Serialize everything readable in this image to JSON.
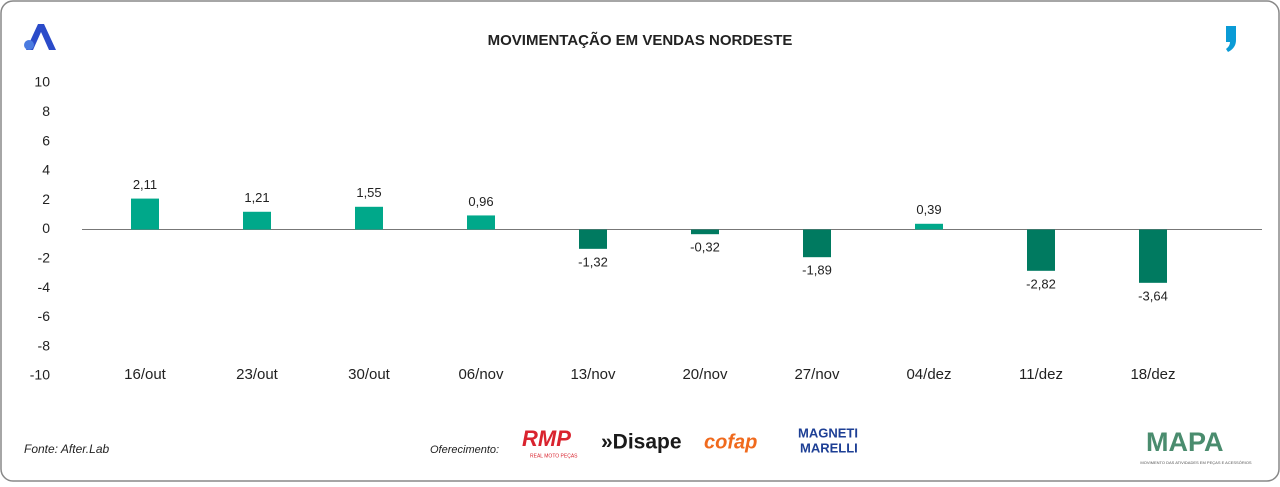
{
  "chart_data": {
    "type": "bar",
    "title": "MOVIMENTAÇÃO EM VENDAS NORDESTE",
    "categories": [
      "16/out",
      "23/out",
      "30/out",
      "06/nov",
      "13/nov",
      "20/nov",
      "27/nov",
      "04/dez",
      "11/dez",
      "18/dez"
    ],
    "values": [
      2.11,
      1.21,
      1.55,
      0.96,
      -1.32,
      -0.32,
      -1.89,
      0.39,
      -2.82,
      -3.64
    ],
    "value_labels": [
      "2,11",
      "1,21",
      "1,55",
      "0,96",
      "-1,32",
      "-0,32",
      "-1,89",
      "0,39",
      "-2,82",
      "-3,64"
    ],
    "positive_color": "#00a88a",
    "negative_color": "#007a60",
    "ylim": [
      -10,
      10
    ],
    "yticks": [
      -10,
      -8,
      -6,
      -4,
      -2,
      0,
      2,
      4,
      6,
      8,
      10
    ],
    "grid": false
  },
  "footer": {
    "source": "Fonte: After.Lab",
    "sponsor_label": "Oferecimento:",
    "sponsors": [
      "RMP",
      "REAL MOTO PEÇAS",
      "»Disape",
      "cofap",
      "MAGNETI",
      "MARELLI"
    ],
    "brand": "MAPA",
    "brand_tagline": "MOVIMENTO DAS ATIVIDADES EM PEÇAS E ACESSÓRIOS"
  }
}
